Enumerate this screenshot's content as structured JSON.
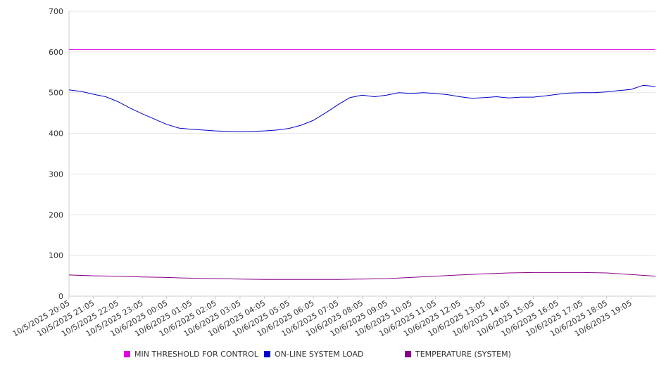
{
  "chart_data": {
    "type": "line",
    "y_ticks": [
      "0",
      "100",
      "200",
      "300",
      "400",
      "500",
      "600",
      "700"
    ],
    "ylim": [
      0,
      700
    ],
    "x_tick_labels": [
      "10/5/2025 20:05",
      "10/5/2025 21:05",
      "10/5/2025 22:05",
      "10/5/2025 23:05",
      "10/6/2025 00:05",
      "10/6/2025 01:05",
      "10/6/2025 02:05",
      "10/6/2025 03:05",
      "10/6/2025 04:05",
      "10/6/2025 05:05",
      "10/6/2025 06:05",
      "10/6/2025 07:05",
      "10/6/2025 08:05",
      "10/6/2025 09:05",
      "10/6/2025 10:05",
      "10/6/2025 11:05",
      "10/6/2025 12:05",
      "10/6/2025 13:05",
      "10/6/2025 14:05",
      "10/6/2025 15:05",
      "10/6/2025 16:05",
      "10/6/2025 17:05",
      "10/6/2025 18:05",
      "10/6/2025 19:05"
    ],
    "grid": true,
    "legend_position": "bottom",
    "series": [
      {
        "name": "MIN THRESHOLD FOR CONTROL",
        "color": "#e000e0",
        "points": [
          [
            "10/5/2025 20:05",
            606
          ],
          [
            "10/6/2025 20:05",
            606
          ]
        ]
      },
      {
        "name": "ON-LINE SYSTEM LOAD",
        "color": "#0000cc",
        "points": [
          [
            "10/5/2025 20:05",
            507
          ],
          [
            "10/5/2025 20:35",
            503
          ],
          [
            "10/5/2025 21:05",
            496
          ],
          [
            "10/5/2025 21:35",
            490
          ],
          [
            "10/5/2025 22:05",
            478
          ],
          [
            "10/5/2025 22:35",
            462
          ],
          [
            "10/5/2025 23:05",
            448
          ],
          [
            "10/5/2025 23:35",
            435
          ],
          [
            "10/6/2025 00:05",
            422
          ],
          [
            "10/6/2025 00:35",
            413
          ],
          [
            "10/6/2025 01:05",
            410
          ],
          [
            "10/6/2025 01:35",
            408
          ],
          [
            "10/6/2025 02:05",
            406
          ],
          [
            "10/6/2025 02:35",
            405
          ],
          [
            "10/6/2025 03:05",
            404
          ],
          [
            "10/6/2025 03:35",
            405
          ],
          [
            "10/6/2025 04:05",
            406
          ],
          [
            "10/6/2025 04:35",
            408
          ],
          [
            "10/6/2025 05:05",
            412
          ],
          [
            "10/6/2025 05:35",
            420
          ],
          [
            "10/6/2025 06:05",
            432
          ],
          [
            "10/6/2025 06:35",
            450
          ],
          [
            "10/6/2025 07:05",
            470
          ],
          [
            "10/6/2025 07:35",
            488
          ],
          [
            "10/6/2025 08:05",
            494
          ],
          [
            "10/6/2025 08:35",
            490
          ],
          [
            "10/6/2025 09:05",
            494
          ],
          [
            "10/6/2025 09:35",
            500
          ],
          [
            "10/6/2025 10:05",
            498
          ],
          [
            "10/6/2025 10:35",
            500
          ],
          [
            "10/6/2025 11:05",
            498
          ],
          [
            "10/6/2025 11:35",
            495
          ],
          [
            "10/6/2025 12:05",
            490
          ],
          [
            "10/6/2025 12:35",
            486
          ],
          [
            "10/6/2025 13:05",
            488
          ],
          [
            "10/6/2025 13:35",
            490
          ],
          [
            "10/6/2025 14:05",
            487
          ],
          [
            "10/6/2025 14:35",
            489
          ],
          [
            "10/6/2025 15:05",
            489
          ],
          [
            "10/6/2025 15:35",
            492
          ],
          [
            "10/6/2025 16:05",
            496
          ],
          [
            "10/6/2025 16:35",
            499
          ],
          [
            "10/6/2025 17:05",
            500
          ],
          [
            "10/6/2025 17:35",
            500
          ],
          [
            "10/6/2025 18:05",
            502
          ],
          [
            "10/6/2025 18:35",
            505
          ],
          [
            "10/6/2025 19:05",
            508
          ],
          [
            "10/6/2025 19:35",
            518
          ],
          [
            "10/6/2025 20:05",
            515
          ]
        ]
      },
      {
        "name": "TEMPERATURE (SYSTEM)",
        "color": "#880088",
        "points": [
          [
            "10/5/2025 20:05",
            52
          ],
          [
            "10/5/2025 21:05",
            50
          ],
          [
            "10/5/2025 22:05",
            49
          ],
          [
            "10/5/2025 23:05",
            47
          ],
          [
            "10/6/2025 00:05",
            46
          ],
          [
            "10/6/2025 01:05",
            44
          ],
          [
            "10/6/2025 02:05",
            43
          ],
          [
            "10/6/2025 03:05",
            42
          ],
          [
            "10/6/2025 04:05",
            41
          ],
          [
            "10/6/2025 05:05",
            41
          ],
          [
            "10/6/2025 06:05",
            41
          ],
          [
            "10/6/2025 07:05",
            41
          ],
          [
            "10/6/2025 08:05",
            42
          ],
          [
            "10/6/2025 09:05",
            43
          ],
          [
            "10/6/2025 10:05",
            46
          ],
          [
            "10/6/2025 11:05",
            49
          ],
          [
            "10/6/2025 12:05",
            52
          ],
          [
            "10/6/2025 13:05",
            55
          ],
          [
            "10/6/2025 14:05",
            57
          ],
          [
            "10/6/2025 15:05",
            58
          ],
          [
            "10/6/2025 16:05",
            58
          ],
          [
            "10/6/2025 17:05",
            58
          ],
          [
            "10/6/2025 18:05",
            57
          ],
          [
            "10/6/2025 19:05",
            53
          ],
          [
            "10/6/2025 20:05",
            49
          ]
        ]
      }
    ]
  }
}
